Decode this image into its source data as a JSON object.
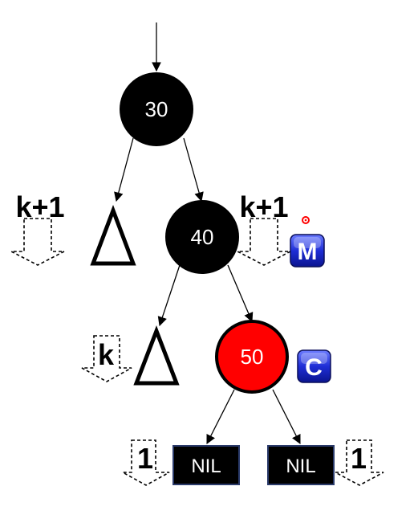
{
  "tree": {
    "nodes": [
      {
        "id": "n30",
        "label": "30",
        "color": "#000000"
      },
      {
        "id": "n40",
        "label": "40",
        "color": "#000000"
      },
      {
        "id": "n50",
        "label": "50",
        "color": "#ff0000"
      }
    ],
    "nil_leaves": [
      {
        "id": "nil-left",
        "label": "NIL"
      },
      {
        "id": "nil-right",
        "label": "NIL"
      }
    ],
    "height_labels": {
      "root_left": "k+1",
      "root_right": "k+1",
      "node40_left": "k",
      "nil_left": "1",
      "nil_right": "1"
    },
    "badges": {
      "m": {
        "label": "M",
        "color": "#1a1acc"
      },
      "c": {
        "label": "C",
        "color": "#1a1acc"
      }
    },
    "marker_color": "#ff0000",
    "nil_border_color": "#2a3a6a"
  }
}
